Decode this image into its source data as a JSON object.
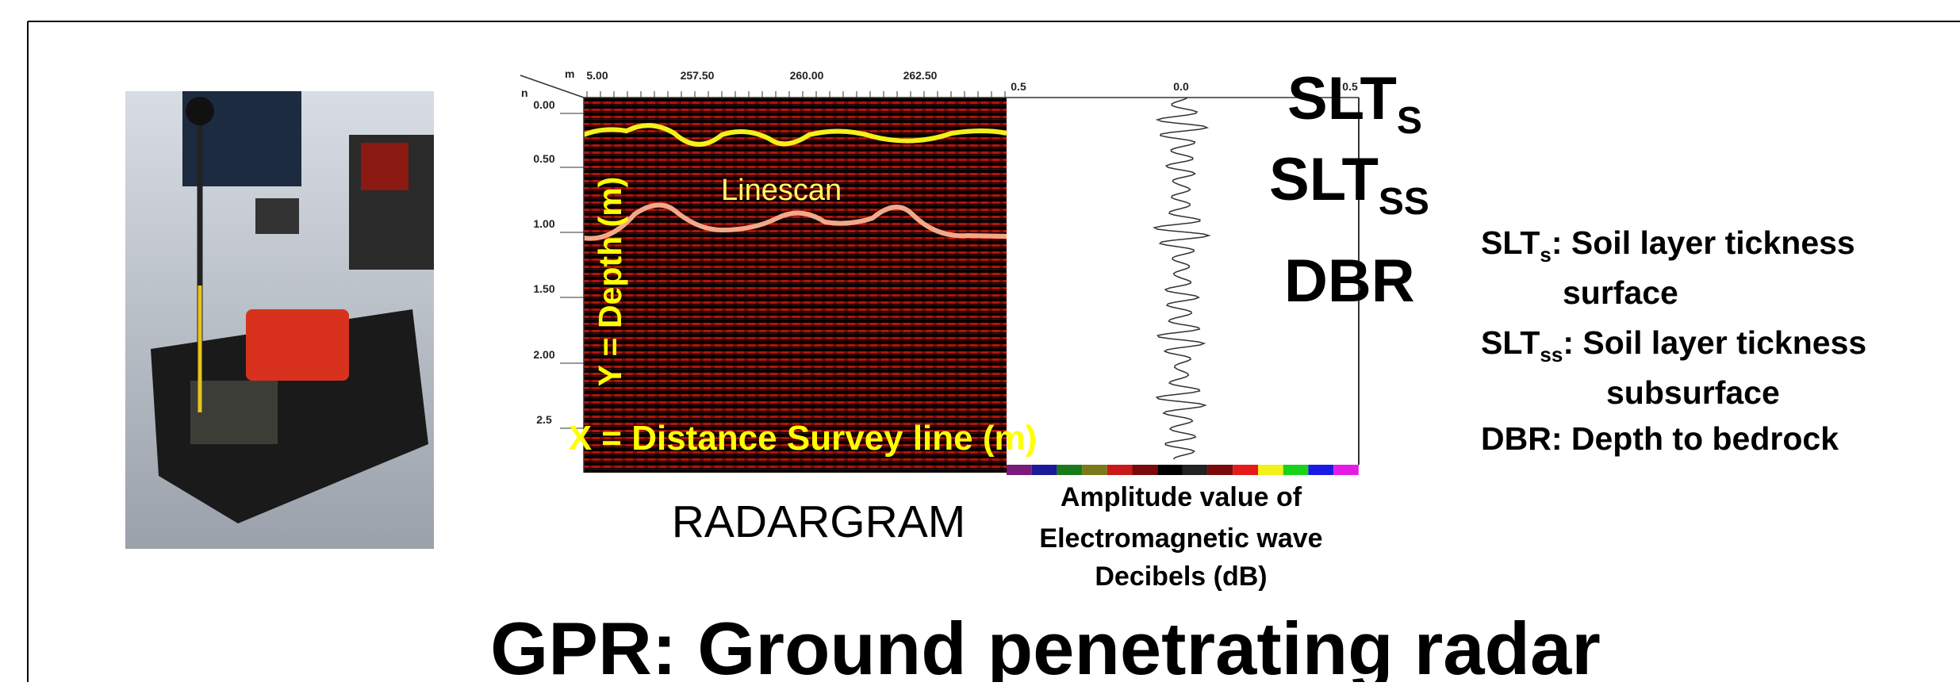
{
  "radargram": {
    "x_unit": "m",
    "y_unit": "n",
    "x_ticks": [
      "5.00",
      "257.50",
      "260.00",
      "262.50"
    ],
    "y_ticks": [
      "0.00",
      "0.50",
      "1.00",
      "1.50",
      "2.00",
      "2.5"
    ],
    "linescan": "Linescan",
    "y_axis_label": "Y = Depth (m)",
    "x_axis_label": "X = Distance Survey line (m)",
    "caption": "RADARGRAM"
  },
  "trace": {
    "ticks": [
      "0.5",
      "0.0",
      "0.5"
    ],
    "caption": [
      "Amplitude value of",
      "Electromagnetic wave",
      "Decibels (dB)"
    ]
  },
  "layers": [
    {
      "base": "SLT",
      "sub": "S"
    },
    {
      "base": "SLT",
      "sub": "SS"
    },
    {
      "base": "DBR"
    }
  ],
  "legend": [
    {
      "term": "SLT",
      "sub": "s",
      "desc": ": Soil layer tickness",
      "cont": "surface"
    },
    {
      "term": "SLT",
      "sub": "ss",
      "desc": ": Soil layer tickness",
      "cont": "subsurface"
    },
    {
      "term": "DBR",
      "desc": ": Depth to bedrock"
    }
  ],
  "title": "GPR: Ground penetrating radar"
}
